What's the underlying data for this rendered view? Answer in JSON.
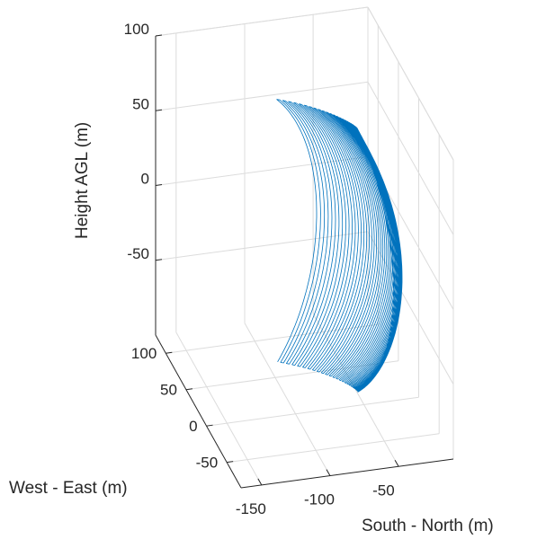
{
  "chart_data": {
    "type": "line",
    "subtype": "3d-parametric-surface-trace",
    "title": "",
    "xlabel": "South - North (m)",
    "ylabel": "West - East (m)",
    "zlabel": "Height AGL (m)",
    "x_ticks": [
      "-150",
      "-100",
      "-50"
    ],
    "y_ticks": [
      "-50",
      "0",
      "50",
      "100"
    ],
    "z_ticks": [
      "-50",
      "0",
      "50",
      "100"
    ],
    "xlim": [
      -165,
      -10
    ],
    "ylim": [
      -85,
      125
    ],
    "zlim": [
      -100,
      100
    ],
    "grid": true,
    "legend": "none",
    "line_color": "#0072BD",
    "series": [
      {
        "sampled_points": [
          {
            "x": -135,
            "y": -60,
            "z": -90
          },
          {
            "x": -130,
            "y": -35,
            "z": -55
          },
          {
            "x": -120,
            "y": 0,
            "z": -10
          },
          {
            "x": -110,
            "y": 40,
            "z": 30
          },
          {
            "x": -100,
            "y": 80,
            "z": 70
          },
          {
            "x": -85,
            "y": 110,
            "z": 98
          },
          {
            "x": -15,
            "y": 110,
            "z": 98
          },
          {
            "x": -20,
            "y": 60,
            "z": 55
          },
          {
            "x": -25,
            "y": 20,
            "z": 10
          },
          {
            "x": -35,
            "y": -10,
            "z": -40
          }
        ]
      }
    ]
  }
}
